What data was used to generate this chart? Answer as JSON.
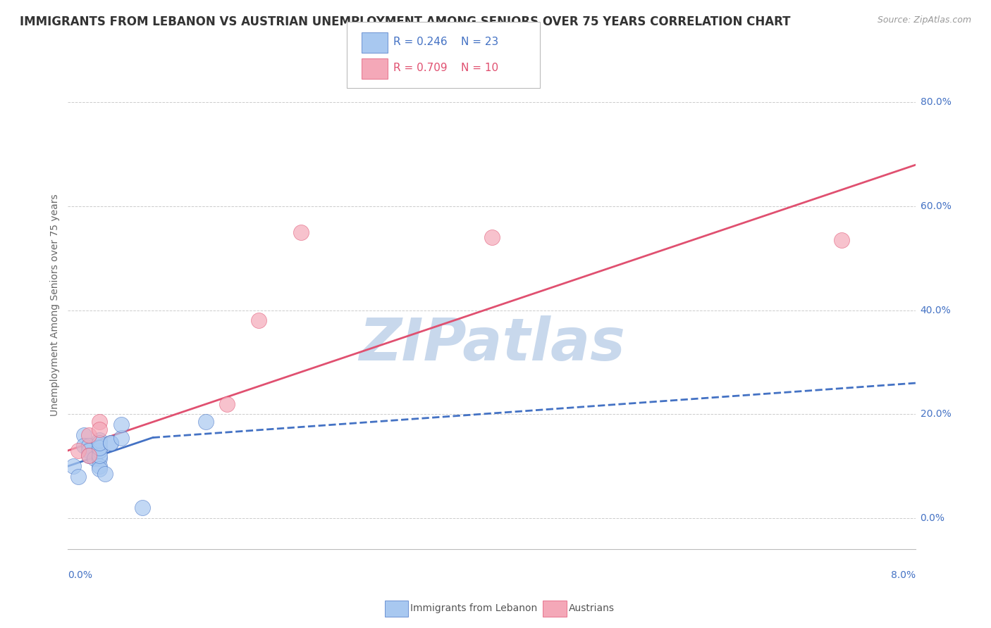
{
  "title": "IMMIGRANTS FROM LEBANON VS AUSTRIAN UNEMPLOYMENT AMONG SENIORS OVER 75 YEARS CORRELATION CHART",
  "source": "Source: ZipAtlas.com",
  "ylabel": "Unemployment Among Seniors over 75 years",
  "legend_blue_r": "R = 0.246",
  "legend_blue_n": "N = 23",
  "legend_pink_r": "R = 0.709",
  "legend_pink_n": "N = 10",
  "legend_label_blue": "Immigrants from Lebanon",
  "legend_label_pink": "Austrians",
  "blue_color": "#A8C8F0",
  "pink_color": "#F4A8B8",
  "blue_line_color": "#4472C4",
  "pink_line_color": "#E05070",
  "blue_r_color": "#4472C4",
  "pink_r_color": "#E05070",
  "watermark_text": "ZIPatlas",
  "xlim": [
    0.0,
    0.08
  ],
  "ylim": [
    -0.06,
    0.88
  ],
  "yticks": [
    0.0,
    0.2,
    0.4,
    0.6,
    0.8
  ],
  "ytick_labels": [
    "0.0%",
    "20.0%",
    "40.0%",
    "60.0%",
    "80.0%"
  ],
  "blue_x": [
    0.0005,
    0.001,
    0.0015,
    0.0015,
    0.002,
    0.002,
    0.002,
    0.0025,
    0.003,
    0.003,
    0.003,
    0.003,
    0.003,
    0.003,
    0.003,
    0.003,
    0.0035,
    0.004,
    0.004,
    0.005,
    0.005,
    0.007,
    0.013
  ],
  "blue_y": [
    0.1,
    0.08,
    0.16,
    0.14,
    0.14,
    0.13,
    0.12,
    0.115,
    0.115,
    0.1,
    0.095,
    0.13,
    0.15,
    0.12,
    0.135,
    0.145,
    0.085,
    0.145,
    0.145,
    0.155,
    0.18,
    0.02,
    0.185
  ],
  "pink_x": [
    0.001,
    0.002,
    0.002,
    0.003,
    0.003,
    0.015,
    0.018,
    0.022,
    0.04,
    0.073
  ],
  "pink_y": [
    0.13,
    0.16,
    0.12,
    0.185,
    0.17,
    0.22,
    0.38,
    0.55,
    0.54,
    0.535
  ],
  "blue_trend_x": [
    0.0,
    0.008,
    0.08
  ],
  "blue_trend_y": [
    0.1,
    0.155,
    0.26
  ],
  "blue_trend_solid_end": 0.008,
  "pink_trend_x": [
    0.0,
    0.08
  ],
  "pink_trend_y": [
    0.13,
    0.68
  ],
  "background_color": "#FFFFFF",
  "grid_color": "#CCCCCC",
  "title_fontsize": 12,
  "axis_fontsize": 10,
  "legend_fontsize": 11,
  "watermark_color": "#C8D8EC",
  "watermark_fontsize": 60,
  "tick_color": "#4472C4"
}
